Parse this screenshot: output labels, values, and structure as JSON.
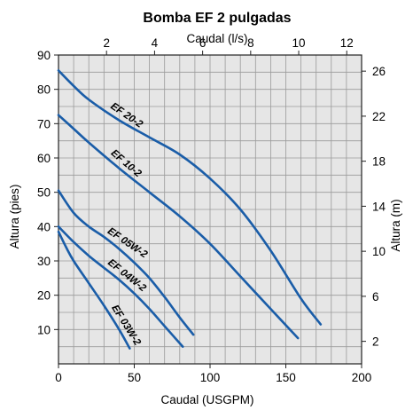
{
  "chart_data": {
    "type": "line",
    "title": "Bomba EF 2 pulgadas",
    "xlabel": "Caudal (USGPM)",
    "ylabel": "Altura (pies)",
    "top_xlabel": "Caudal (l/s)",
    "right_ylabel": "Altura (m)",
    "xlim": [
      0,
      200
    ],
    "ylim": [
      0,
      90
    ],
    "x_ticks": [
      0,
      50,
      100,
      150,
      200
    ],
    "y_ticks": [
      10,
      20,
      30,
      40,
      50,
      60,
      70,
      80,
      90
    ],
    "top_x_ticks": [
      2,
      4,
      6,
      8,
      10,
      12
    ],
    "right_y_ticks": [
      2,
      6,
      10,
      14,
      18,
      22,
      26
    ],
    "grid": true,
    "series": [
      {
        "name": "EF 20-2",
        "x": [
          0,
          10,
          20,
          40,
          60,
          80,
          100,
          120,
          140,
          160,
          173
        ],
        "y": [
          85.5,
          81,
          77,
          71,
          66,
          61,
          54,
          45,
          33,
          19,
          11.5
        ]
      },
      {
        "name": "EF 10-2",
        "x": [
          0,
          10,
          20,
          40,
          60,
          80,
          100,
          120,
          140,
          158
        ],
        "y": [
          72.5,
          68.5,
          64.5,
          57,
          50,
          43,
          35,
          25.5,
          16,
          7.5
        ]
      },
      {
        "name": "EF 05W-2",
        "x": [
          0,
          10,
          20,
          30,
          40,
          50,
          60,
          70,
          80,
          89
        ],
        "y": [
          50.5,
          44,
          40,
          37,
          33.5,
          29.5,
          25,
          19.5,
          13.5,
          8.5
        ]
      },
      {
        "name": "EF 04W-2",
        "x": [
          0,
          10,
          20,
          30,
          40,
          50,
          60,
          70,
          82
        ],
        "y": [
          40,
          35.5,
          31.5,
          28,
          24.5,
          20.5,
          16,
          11,
          5
        ]
      },
      {
        "name": "EF 03W-2",
        "x": [
          0,
          5,
          10,
          20,
          30,
          40,
          47
        ],
        "y": [
          38.5,
          34,
          30,
          23.5,
          17,
          10,
          4.5
        ]
      }
    ]
  },
  "colors": {
    "curve": "#1a5da8",
    "grid": "#9a9a9a",
    "background": "#e6e6e6"
  }
}
